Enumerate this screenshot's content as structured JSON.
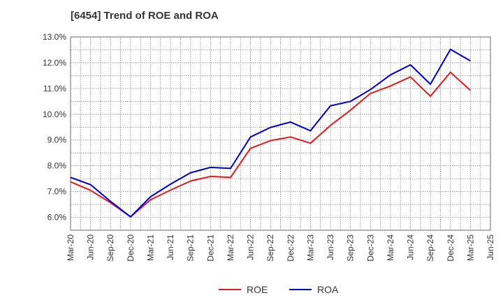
{
  "chart_data": {
    "type": "line",
    "title": "[6454]  Trend of ROE and ROA",
    "xlabel": "",
    "ylabel": "",
    "categories": [
      "Mar-20",
      "Jun-20",
      "Sep-20",
      "Dec-20",
      "Mar-21",
      "Jun-21",
      "Sep-21",
      "Dec-21",
      "Mar-22",
      "Jun-22",
      "Sep-22",
      "Dec-22",
      "Mar-23",
      "Jun-23",
      "Sep-23",
      "Dec-23",
      "Mar-24",
      "Jun-24",
      "Sep-24",
      "Dec-24",
      "Mar-25",
      "Jun-25"
    ],
    "y_ticks": [
      "6.0%",
      "7.0%",
      "8.0%",
      "9.0%",
      "10.0%",
      "11.0%",
      "12.0%",
      "13.0%"
    ],
    "ylim": [
      5.5,
      13.0
    ],
    "grid": true,
    "legend_position": "bottom-center",
    "series": [
      {
        "name": "ROE",
        "color": "#e31a1c",
        "values": [
          7.38,
          7.05,
          6.57,
          6.02,
          6.68,
          7.06,
          7.41,
          7.59,
          7.55,
          8.68,
          8.98,
          9.12,
          8.88,
          9.57,
          10.16,
          10.81,
          11.1,
          11.45,
          10.7,
          11.63,
          10.93,
          null
        ]
      },
      {
        "name": "ROA",
        "color": "#0000cc",
        "values": [
          7.55,
          7.27,
          6.62,
          6.02,
          6.8,
          7.29,
          7.73,
          7.94,
          7.9,
          9.12,
          9.49,
          9.7,
          9.36,
          10.33,
          10.5,
          10.96,
          11.53,
          11.92,
          11.17,
          12.52,
          12.07,
          null
        ]
      }
    ]
  }
}
